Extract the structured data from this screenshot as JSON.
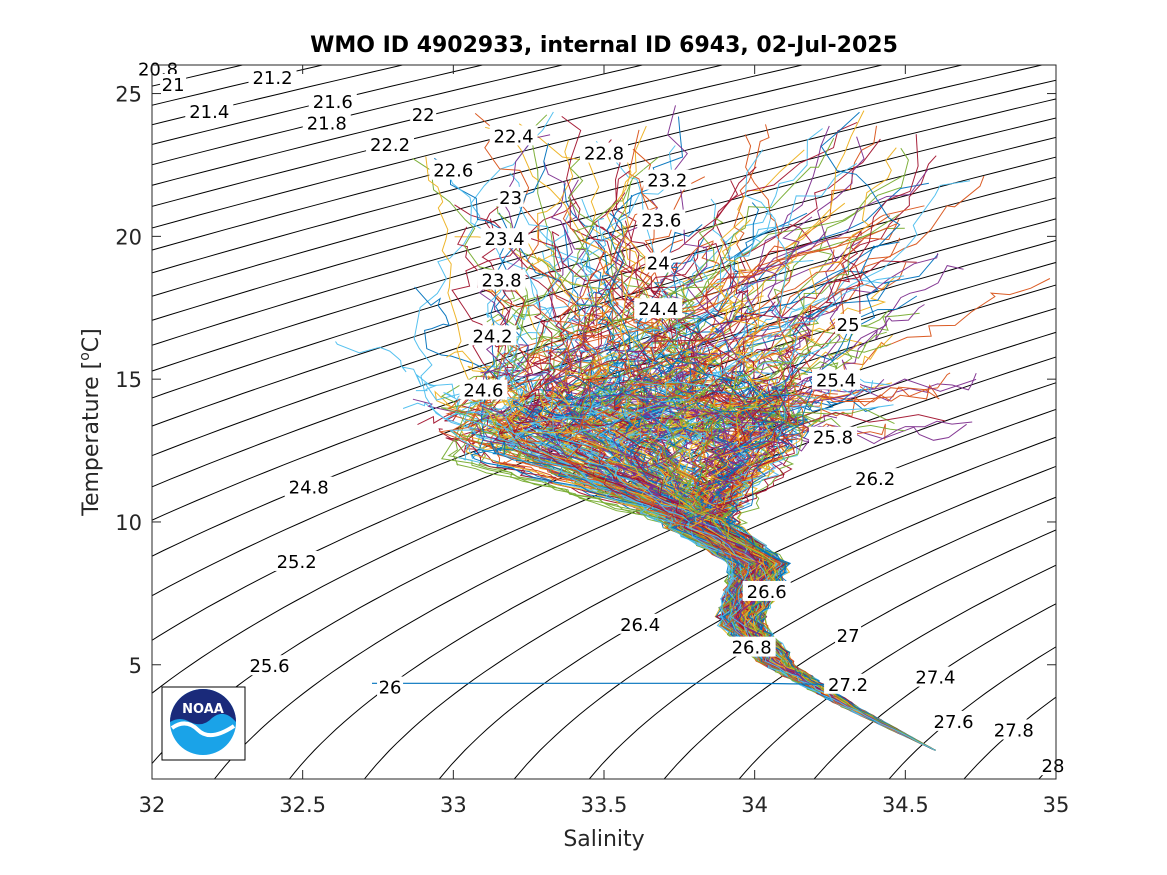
{
  "chart_data": {
    "type": "line",
    "title": "WMO ID 4902933, internal ID 6943, 02-Jul-2025",
    "xlabel": "Salinity",
    "ylabel_main": "Temperature [",
    "ylabel_sup": "o",
    "ylabel_end": "C]",
    "xlim": [
      32,
      35
    ],
    "ylim": [
      1,
      26
    ],
    "xticks": [
      32,
      32.5,
      33,
      33.5,
      34,
      34.5,
      35
    ],
    "xtick_labels": [
      "32",
      "32.5",
      "33",
      "33.5",
      "34",
      "34.5",
      "35"
    ],
    "yticks": [
      5,
      10,
      15,
      20,
      25
    ],
    "ytick_labels": [
      "5",
      "10",
      "15",
      "20",
      "25"
    ],
    "grid": false,
    "density_contours": {
      "levels_start": 20.8,
      "levels_step": 0.2,
      "levels_end": 28.0,
      "labels": [
        {
          "text": "20.8",
          "s": 32.02,
          "t": 25.85
        },
        {
          "text": "21",
          "s": 32.07,
          "t": 25.3
        },
        {
          "text": "21.2",
          "s": 32.4,
          "t": 25.55
        },
        {
          "text": "21.4",
          "s": 32.19,
          "t": 24.35
        },
        {
          "text": "21.6",
          "s": 32.6,
          "t": 24.7
        },
        {
          "text": "21.8",
          "s": 32.58,
          "t": 23.95
        },
        {
          "text": "22",
          "s": 32.9,
          "t": 24.25
        },
        {
          "text": "22.2",
          "s": 32.79,
          "t": 23.2
        },
        {
          "text": "22.4",
          "s": 33.2,
          "t": 23.5
        },
        {
          "text": "22.6",
          "s": 33.0,
          "t": 22.3
        },
        {
          "text": "22.8",
          "s": 33.5,
          "t": 22.9
        },
        {
          "text": "23",
          "s": 33.19,
          "t": 21.35
        },
        {
          "text": "23.2",
          "s": 33.71,
          "t": 21.95
        },
        {
          "text": "23.4",
          "s": 33.17,
          "t": 19.9
        },
        {
          "text": "23.6",
          "s": 33.69,
          "t": 20.55
        },
        {
          "text": "23.8",
          "s": 33.16,
          "t": 18.45
        },
        {
          "text": "24",
          "s": 33.68,
          "t": 19.05
        },
        {
          "text": "24.2",
          "s": 33.13,
          "t": 16.5
        },
        {
          "text": "24.4",
          "s": 33.68,
          "t": 17.45
        },
        {
          "text": "24.6",
          "s": 33.1,
          "t": 14.6
        },
        {
          "text": "24.8",
          "s": 32.52,
          "t": 11.2
        },
        {
          "text": "25",
          "s": 34.31,
          "t": 16.9
        },
        {
          "text": "25.2",
          "s": 32.48,
          "t": 8.6
        },
        {
          "text": "25.4",
          "s": 34.27,
          "t": 14.95
        },
        {
          "text": "25.6",
          "s": 32.39,
          "t": 4.95
        },
        {
          "text": "25.8",
          "s": 34.26,
          "t": 12.95
        },
        {
          "text": "26",
          "s": 32.79,
          "t": 4.2
        },
        {
          "text": "26.2",
          "s": 34.4,
          "t": 11.5
        },
        {
          "text": "26.4",
          "s": 33.62,
          "t": 6.4
        },
        {
          "text": "26.6",
          "s": 34.04,
          "t": 7.55
        },
        {
          "text": "26.8",
          "s": 33.99,
          "t": 5.6
        },
        {
          "text": "27",
          "s": 34.31,
          "t": 6.0
        },
        {
          "text": "27.2",
          "s": 34.31,
          "t": 4.3
        },
        {
          "text": "27.4",
          "s": 34.6,
          "t": 4.55
        },
        {
          "text": "27.6",
          "s": 34.66,
          "t": 3.0
        },
        {
          "text": "27.8",
          "s": 34.86,
          "t": 2.7
        },
        {
          "text": "28",
          "s": 34.99,
          "t": 1.45
        }
      ]
    },
    "profiles": {
      "count": 300,
      "deep_end": {
        "s": 34.6,
        "t": 2.0
      },
      "min_s_at_surface": 32.55,
      "max_s_at_surface": 34.8,
      "outlier_line": {
        "s": [
          32.73,
          34.0,
          34.33
        ],
        "t": [
          4.35,
          4.35,
          4.3
        ]
      },
      "color_order": [
        "#0072BD",
        "#D95319",
        "#EDB120",
        "#7E2F8E",
        "#77AC30",
        "#4DBEEE",
        "#A2142F"
      ]
    }
  },
  "logo": {
    "name": "noaa-logo",
    "text": "NOAA",
    "colors": {
      "dark": "#1a2a7a",
      "light": "#1aa3e8"
    }
  }
}
